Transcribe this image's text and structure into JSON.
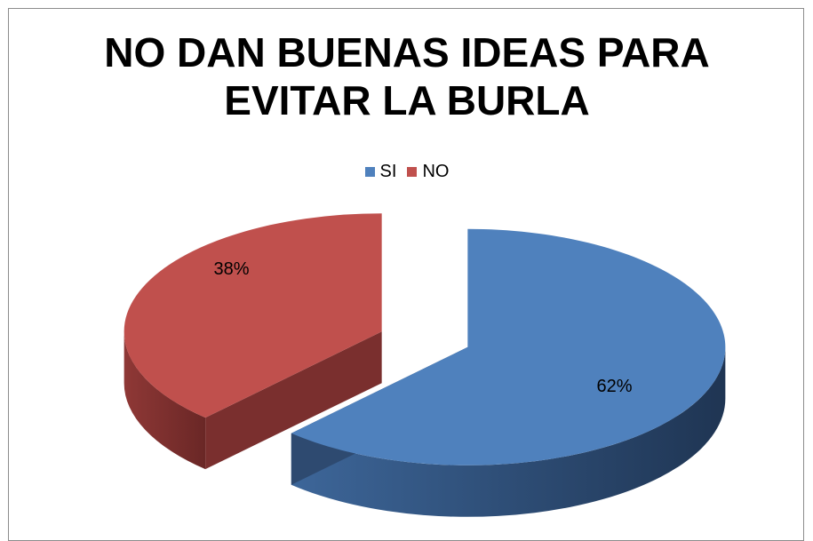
{
  "chart_data": {
    "type": "pie",
    "title_lines": [
      "NO DAN BUENAS IDEAS PARA",
      "EVITAR LA BURLA"
    ],
    "categories": [
      "SI",
      "NO"
    ],
    "values": [
      62,
      38
    ],
    "data_labels": [
      "62%",
      "38%"
    ],
    "legend_position": "top",
    "colors": {
      "SI": "#4f81bd",
      "SI_side": "#2e4a70",
      "NO": "#c0504d",
      "NO_side": "#7a2f2e"
    },
    "style": "3d-exploded"
  }
}
